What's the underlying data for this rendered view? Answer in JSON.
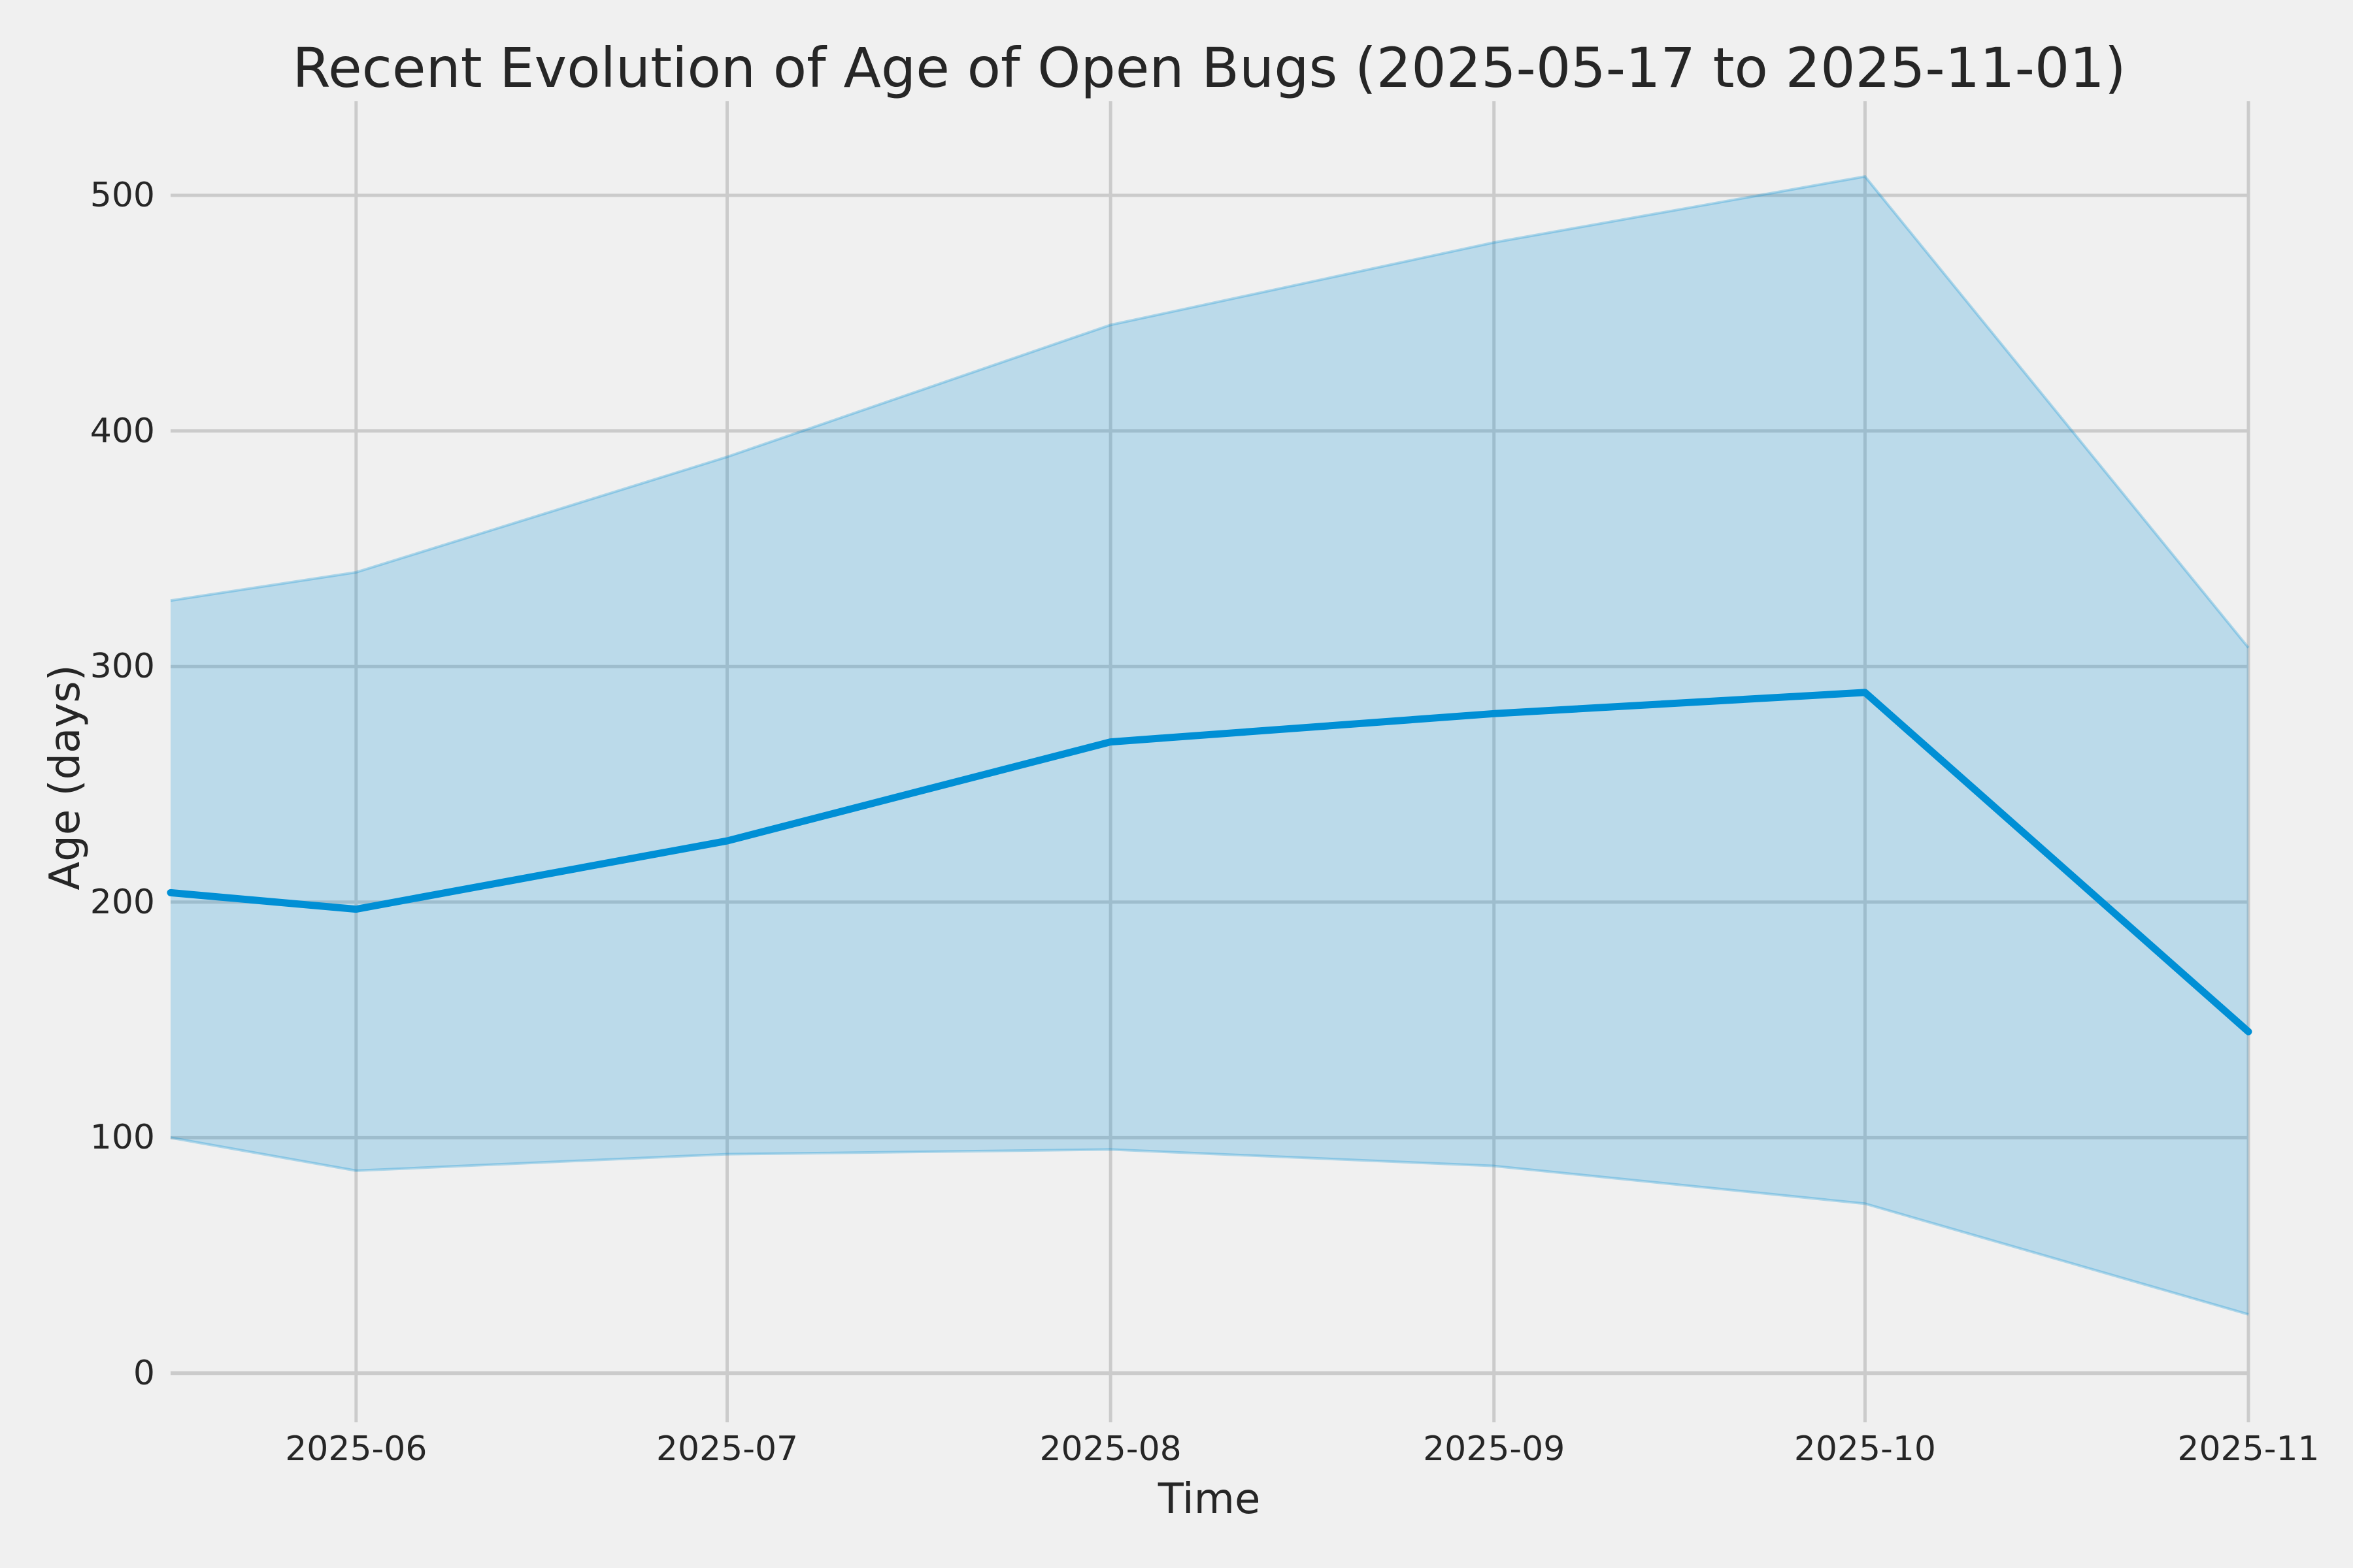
{
  "title": "Recent Evolution of Age of Open Bugs (2025-05-17 to 2025-11-01)",
  "colors": {
    "background": "#f0f0f0",
    "grid": "#cbcbcb",
    "line": "#008fd5",
    "band_fill": "#008fd5",
    "band_fill_opacity": 0.22,
    "band_edge_opacity": 0.28,
    "text": "#262626"
  },
  "chart_data": {
    "type": "line",
    "title": "Recent Evolution of Age of Open Bugs (2025-05-17 to 2025-11-01)",
    "xlabel": "Time",
    "ylabel": "Age (days)",
    "x_dates": [
      "2025-05-17",
      "2025-06-01",
      "2025-07-01",
      "2025-08-01",
      "2025-09-01",
      "2025-10-01",
      "2025-11-01"
    ],
    "series": [
      {
        "name": "median_age_days",
        "role": "line",
        "values": [
          204,
          197,
          226,
          268,
          280,
          289,
          145
        ]
      },
      {
        "name": "band_upper_days",
        "role": "band-upper",
        "values": [
          328,
          340,
          389,
          445,
          480,
          508,
          308
        ]
      },
      {
        "name": "band_lower_days",
        "role": "band-lower",
        "values": [
          100,
          86,
          93,
          95,
          88,
          72,
          25
        ]
      }
    ],
    "x_tick_labels": [
      "2025-06",
      "2025-07",
      "2025-08",
      "2025-09",
      "2025-10",
      "2025-11"
    ],
    "y_tick_labels": [
      0,
      100,
      200,
      300,
      400,
      500
    ],
    "ylim": [
      -21,
      540
    ],
    "grid": true,
    "legend": "none"
  }
}
